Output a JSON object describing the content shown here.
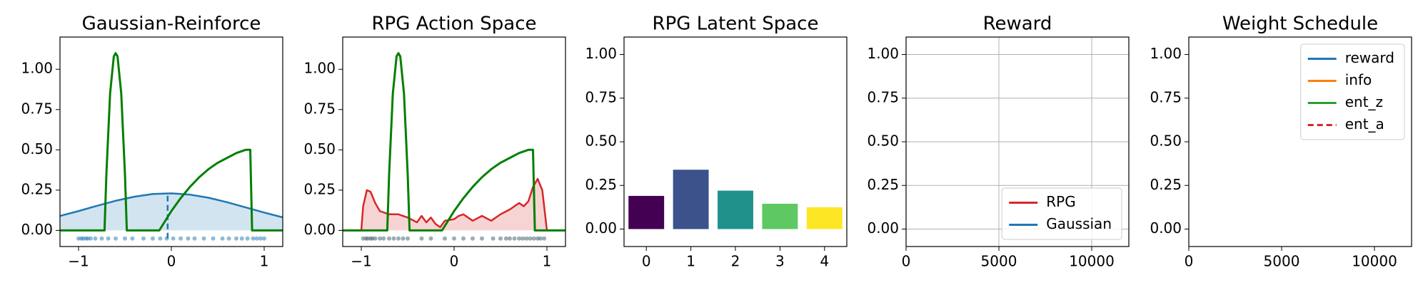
{
  "chart_data": [
    {
      "type": "line",
      "title": "Gaussian-Reinforce",
      "xlim": [
        -1.2,
        1.2
      ],
      "ylim": [
        -0.1,
        1.2
      ],
      "xticks": [
        {
          "value": -1,
          "label": "−1"
        },
        0,
        1
      ],
      "yticks": [
        {
          "value": 0,
          "label": "0.00"
        },
        {
          "value": 0.25,
          "label": "0.25"
        },
        {
          "value": 0.5,
          "label": "0.50"
        },
        {
          "value": 0.75,
          "label": "0.75"
        },
        {
          "value": 1,
          "label": "1.00"
        }
      ],
      "grid": false,
      "series": [
        {
          "color": "#1f77b4",
          "fill": true,
          "x": [
            -1.2,
            -1.0,
            -0.8,
            -0.6,
            -0.4,
            -0.2,
            0,
            0.2,
            0.4,
            0.6,
            0.8,
            1.0,
            1.2
          ],
          "values": [
            0.09,
            0.12,
            0.153,
            0.184,
            0.209,
            0.226,
            0.23,
            0.222,
            0.203,
            0.175,
            0.143,
            0.111,
            0.081
          ]
        },
        {
          "color": "#1f77b4",
          "linestyle": "dashed",
          "x": [
            -0.04,
            -0.04
          ],
          "values": [
            -0.05,
            0.22
          ]
        },
        {
          "color": "#008000",
          "x": [
            -1.2,
            -0.72,
            -0.7,
            -0.66,
            -0.62,
            -0.6,
            -0.58,
            -0.54,
            -0.5,
            -0.48,
            -0.13,
            0,
            0.1,
            0.2,
            0.3,
            0.4,
            0.5,
            0.6,
            0.7,
            0.8,
            0.85,
            0.87,
            1.2
          ],
          "values": [
            0,
            0,
            0.35,
            0.85,
            1.08,
            1.1,
            1.08,
            0.85,
            0.35,
            0,
            0,
            0.12,
            0.2,
            0.27,
            0.33,
            0.38,
            0.42,
            0.45,
            0.48,
            0.5,
            0.5,
            0,
            0
          ]
        }
      ],
      "samples": {
        "color": "#1f77b4",
        "y": -0.05,
        "x": [
          -1.0,
          -0.97,
          -0.95,
          -0.92,
          -0.9,
          -0.87,
          -0.82,
          -0.75,
          -0.68,
          -0.6,
          -0.5,
          -0.42,
          -0.3,
          -0.2,
          -0.12,
          -0.05,
          0.02,
          0.1,
          0.18,
          0.25,
          0.35,
          0.45,
          0.55,
          0.62,
          0.7,
          0.76,
          0.82,
          0.88,
          0.92,
          0.96,
          1.0
        ]
      }
    },
    {
      "type": "line",
      "title": "RPG Action Space",
      "xlim": [
        -1.2,
        1.2
      ],
      "ylim": [
        -0.1,
        1.2
      ],
      "xticks": [
        {
          "value": -1,
          "label": "−1"
        },
        0,
        1
      ],
      "yticks": [
        {
          "value": 0,
          "label": "0.00"
        },
        {
          "value": 0.25,
          "label": "0.25"
        },
        {
          "value": 0.5,
          "label": "0.50"
        },
        {
          "value": 0.75,
          "label": "0.75"
        },
        {
          "value": 1,
          "label": "1.00"
        }
      ],
      "grid": false,
      "series": [
        {
          "color": "#d62728",
          "fill": true,
          "x": [
            -1.2,
            -1.0,
            -0.98,
            -0.94,
            -0.9,
            -0.85,
            -0.8,
            -0.7,
            -0.6,
            -0.5,
            -0.4,
            -0.35,
            -0.3,
            -0.25,
            -0.2,
            -0.15,
            -0.1,
            0,
            0.05,
            0.1,
            0.15,
            0.2,
            0.3,
            0.4,
            0.5,
            0.6,
            0.7,
            0.75,
            0.8,
            0.85,
            0.9,
            0.95,
            0.98,
            1.0,
            1.2
          ],
          "values": [
            0,
            0,
            0.15,
            0.25,
            0.24,
            0.17,
            0.12,
            0.1,
            0.1,
            0.08,
            0.05,
            0.09,
            0.05,
            0.08,
            0.04,
            0.02,
            0.06,
            0.07,
            0.09,
            0.1,
            0.08,
            0.06,
            0.09,
            0.06,
            0.1,
            0.13,
            0.17,
            0.15,
            0.18,
            0.27,
            0.32,
            0.25,
            0.1,
            0,
            0
          ]
        },
        {
          "color": "#008000",
          "x": [
            -1.2,
            -0.72,
            -0.7,
            -0.66,
            -0.62,
            -0.6,
            -0.58,
            -0.54,
            -0.5,
            -0.48,
            -0.13,
            0,
            0.1,
            0.2,
            0.3,
            0.4,
            0.5,
            0.6,
            0.7,
            0.8,
            0.85,
            0.87,
            1.2
          ],
          "values": [
            0,
            0,
            0.35,
            0.85,
            1.08,
            1.1,
            1.08,
            0.85,
            0.35,
            0,
            0,
            0.12,
            0.2,
            0.27,
            0.33,
            0.38,
            0.42,
            0.45,
            0.48,
            0.5,
            0.5,
            0,
            0
          ]
        }
      ],
      "samples": {
        "color": "#3b5a6b",
        "y": -0.05,
        "x": [
          -0.98,
          -0.95,
          -0.93,
          -0.9,
          -0.88,
          -0.85,
          -0.8,
          -0.76,
          -0.7,
          -0.65,
          -0.6,
          -0.55,
          -0.5,
          -0.35,
          -0.25,
          -0.1,
          0.0,
          0.1,
          0.2,
          0.3,
          0.42,
          0.5,
          0.56,
          0.6,
          0.65,
          0.7,
          0.74,
          0.78,
          0.82,
          0.86,
          0.9,
          0.93,
          0.97
        ]
      }
    },
    {
      "type": "bar",
      "title": "RPG Latent Space",
      "ylim": [
        -0.1,
        1.1
      ],
      "categories": [
        "0",
        "1",
        "2",
        "3",
        "4"
      ],
      "yticks": [
        {
          "value": 0,
          "label": "0.00"
        },
        {
          "value": 0.25,
          "label": "0.25"
        },
        {
          "value": 0.5,
          "label": "0.50"
        },
        {
          "value": 0.75,
          "label": "0.75"
        },
        {
          "value": 1,
          "label": "1.00"
        }
      ],
      "grid": false,
      "values": [
        0.19,
        0.34,
        0.22,
        0.145,
        0.125
      ],
      "colors": [
        "#440154",
        "#3b528b",
        "#21918c",
        "#5ec962",
        "#fde725"
      ]
    },
    {
      "type": "line",
      "title": "Reward",
      "xlim": [
        0,
        12000
      ],
      "ylim": [
        -0.1,
        1.1
      ],
      "xticks": [
        0,
        5000,
        10000
      ],
      "yticks": [
        {
          "value": 0,
          "label": "0.00"
        },
        {
          "value": 0.25,
          "label": "0.25"
        },
        {
          "value": 0.5,
          "label": "0.50"
        },
        {
          "value": 0.75,
          "label": "0.75"
        },
        {
          "value": 1,
          "label": "1.00"
        }
      ],
      "grid": true,
      "legend": "lower right",
      "series": [
        {
          "name": "RPG",
          "color": "#d62728",
          "x": [],
          "values": []
        },
        {
          "name": "Gaussian",
          "color": "#1f77b4",
          "x": [],
          "values": []
        }
      ]
    },
    {
      "type": "line",
      "title": "Weight Schedule",
      "xlim": [
        0,
        12000
      ],
      "ylim": [
        -0.1,
        1.1
      ],
      "xticks": [
        0,
        5000,
        10000
      ],
      "yticks": [
        {
          "value": 0,
          "label": "0.00"
        },
        {
          "value": 0.25,
          "label": "0.25"
        },
        {
          "value": 0.5,
          "label": "0.50"
        },
        {
          "value": 0.75,
          "label": "0.75"
        },
        {
          "value": 1,
          "label": "1.00"
        }
      ],
      "grid": false,
      "legend": "upper right",
      "series": [
        {
          "name": "reward",
          "color": "#1f77b4",
          "x": [],
          "values": []
        },
        {
          "name": "info",
          "color": "#ff7f0e",
          "x": [],
          "values": []
        },
        {
          "name": "ent_z",
          "color": "#2ca02c",
          "x": [],
          "values": []
        },
        {
          "name": "ent_a",
          "color": "#d62728",
          "linestyle": "dashed",
          "x": [],
          "values": []
        }
      ]
    }
  ]
}
